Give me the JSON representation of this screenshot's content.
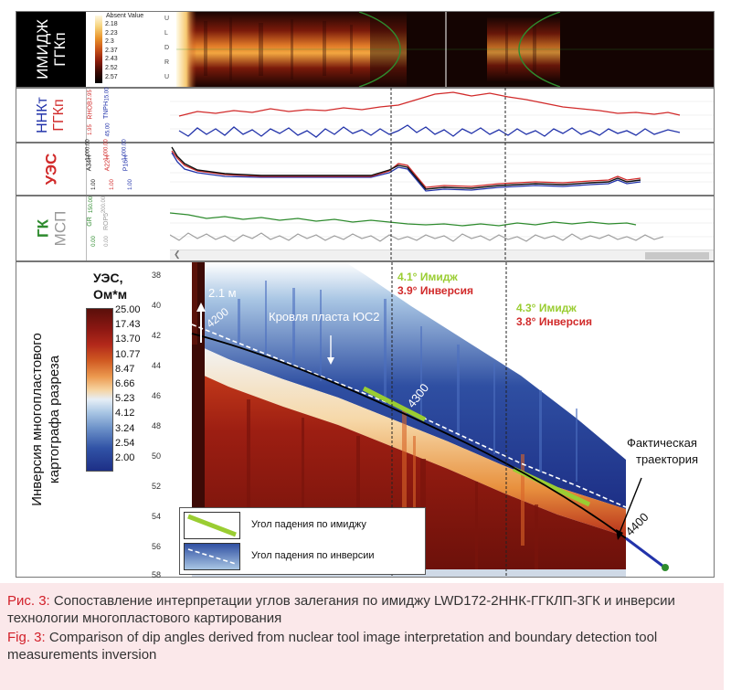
{
  "tracks": {
    "image": {
      "label_line1": "ИМИДЖ",
      "label_line2": "ГГКп",
      "legend_title": "Absent Value",
      "legend_values": [
        "2.18",
        "2.23",
        "2.3",
        "2.37",
        "2.43",
        "2.52",
        "2.57"
      ],
      "side_letters": [
        "U",
        "L",
        "D",
        "R",
        "U"
      ]
    },
    "nnk": {
      "label_a": "ННКт",
      "label_b": "ГГКп",
      "curve_labels": [
        "RHOB",
        "TNPH"
      ],
      "scale_values": [
        "1.95",
        "2.95",
        "45.00",
        "-15.00"
      ]
    },
    "uez": {
      "label": "УЭС",
      "curve_labels": [
        "A34H",
        "A22H",
        "P16H"
      ],
      "scale_values": [
        "1.00",
        "1,000.00",
        "1.00",
        "1,000.00",
        "1.00",
        "1,000.00"
      ]
    },
    "gk": {
      "label_a": "ГК",
      "label_b": "МСП",
      "curve_labels": [
        "GR",
        "ROP5"
      ],
      "scale_values": [
        "0.00",
        "150.00",
        "0.00",
        "200.00"
      ]
    }
  },
  "colors": {
    "black": "#000000",
    "red": "#d12a2a",
    "blue": "#2233aa",
    "green": "#2e8b2e",
    "gray": "#9a9a9a",
    "lime": "#9acd32",
    "caption_bg": "#fbe8ea",
    "caption_label": "#d2202a"
  },
  "inversion": {
    "side_label_line1": "Инверсия многопластового",
    "side_label_line2": "картографа разреза",
    "legend_title_line1": "УЭС,",
    "legend_title_line2": "Ом*м",
    "legend_values": [
      "25.00",
      "17.43",
      "13.70",
      "10.77",
      "8.47",
      "6.66",
      "5.23",
      "4.12",
      "3.24",
      "2.54",
      "2.00"
    ],
    "depth_ticks": [
      "38",
      "40",
      "42",
      "44",
      "46",
      "48",
      "50",
      "52",
      "54",
      "56",
      "58"
    ],
    "annotations": {
      "thickness": "2.1 м",
      "roof": "Кровля пласта ЮС2",
      "dip1_image": "4.1° Имидж",
      "dip1_inversion": "3.9° Инверсия",
      "dip2_image": "4.3° Имидж",
      "dip2_inversion": "3.8° Инверсия",
      "trajectory_line1": "Фактическая",
      "trajectory_line2": "траектория",
      "md1": "4200",
      "md2": "4300",
      "md3": "4400"
    },
    "legend_box": {
      "image_dip": "Угол падения по имиджу",
      "inversion_dip": "Угол падения по инверсии"
    }
  },
  "caption": {
    "ru_label": "Рис. 3:",
    "ru_text": "Сопоставление интерпретации углов залегания по имиджу LWD172-2ННК-ГГКЛП-3ГК и инверсии технологии многопластового картирования",
    "en_label": "Fig. 3:",
    "en_text": "Comparison of dip angles derived from nuclear tool image interpretation and boundary detection tool measurements inversion"
  }
}
